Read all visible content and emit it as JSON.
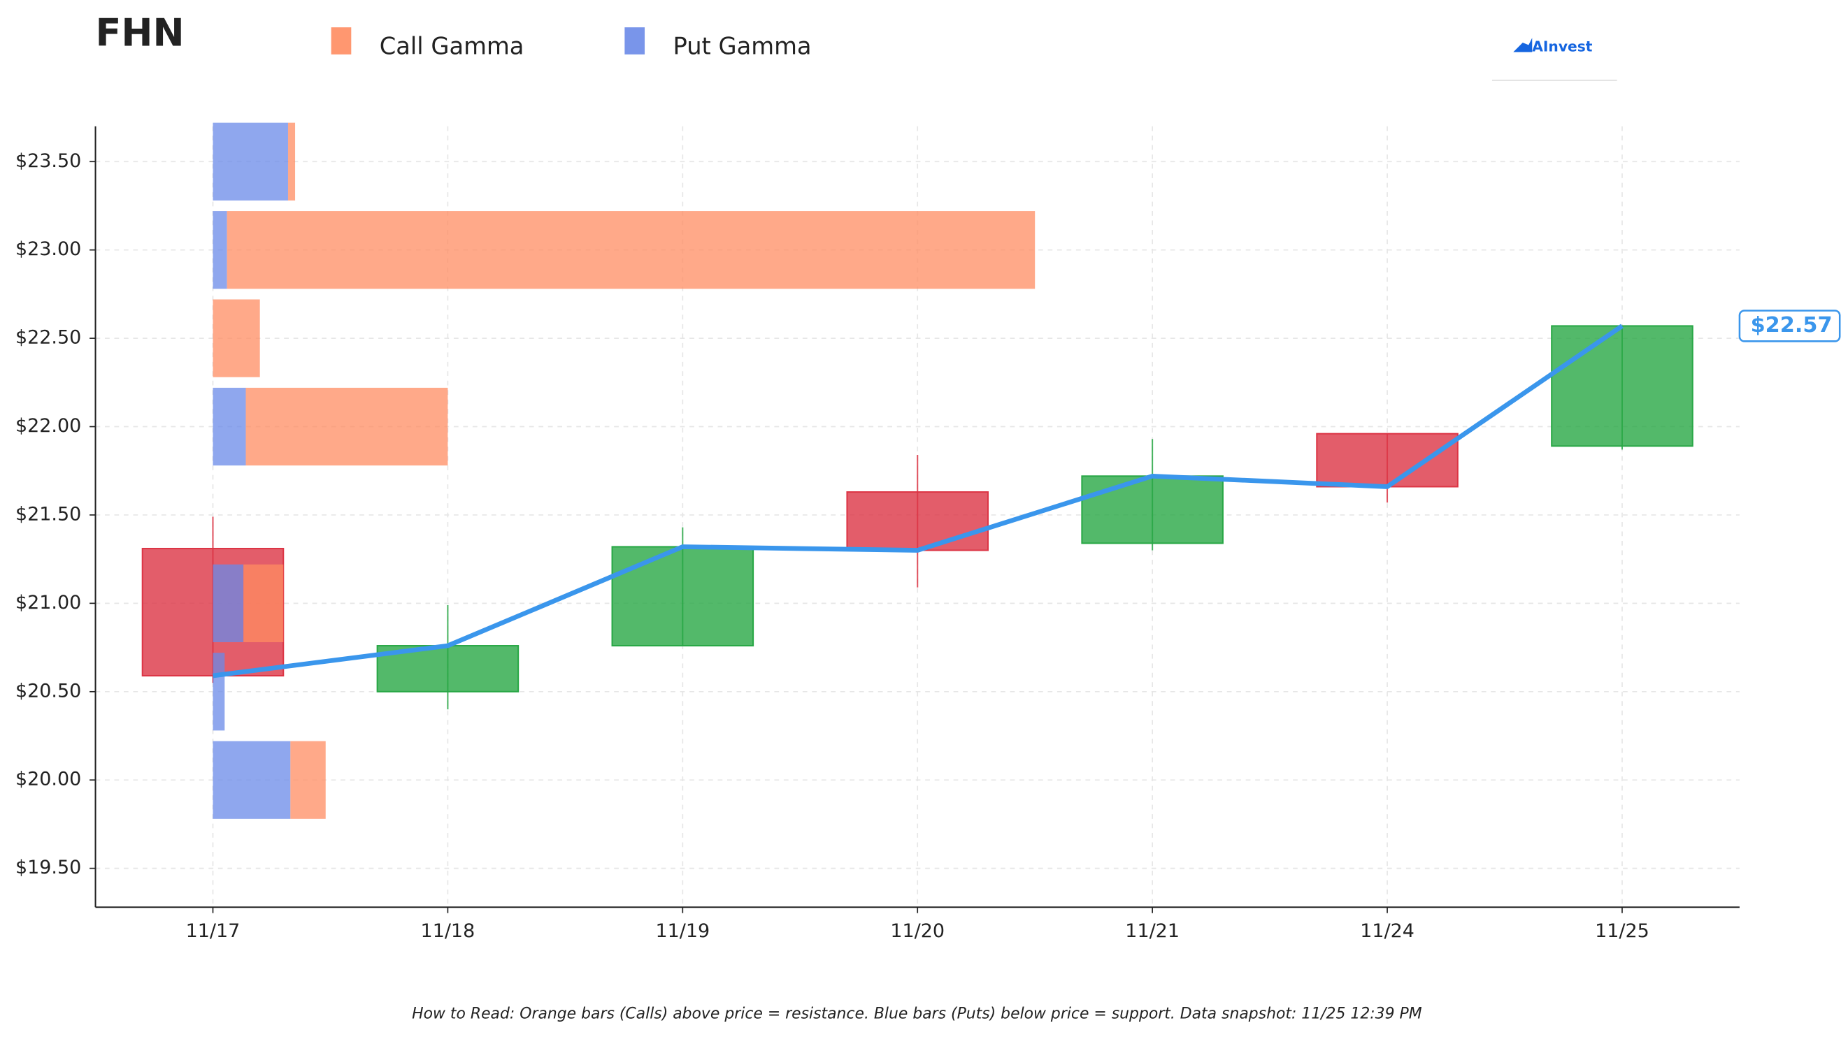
{
  "chart_data": {
    "type": "candlestick",
    "title": "FHN",
    "categories": [
      "11/17",
      "11/18",
      "11/19",
      "11/20",
      "11/21",
      "11/24",
      "11/25"
    ],
    "open": [
      21.31,
      20.5,
      20.76,
      21.63,
      21.34,
      21.96,
      21.89
    ],
    "high": [
      21.49,
      20.99,
      21.43,
      21.84,
      21.93,
      21.96,
      22.57
    ],
    "low": [
      20.55,
      20.4,
      20.76,
      21.09,
      21.3,
      21.57,
      21.87
    ],
    "close": [
      20.59,
      20.76,
      21.32,
      21.3,
      21.72,
      21.66,
      22.57
    ],
    "up_color": "#28a745",
    "down_color": "#dc3545",
    "line_color": "#3a96ec",
    "ylim": [
      19.28,
      23.7
    ],
    "yticks": [
      {
        "value": 19.5,
        "label": "$19.50"
      },
      {
        "value": 20.0,
        "label": "$20.00"
      },
      {
        "value": 20.5,
        "label": "$20.50"
      },
      {
        "value": 21.0,
        "label": "$21.00"
      },
      {
        "value": 21.5,
        "label": "$21.50"
      },
      {
        "value": 22.0,
        "label": "$22.00"
      },
      {
        "value": 22.5,
        "label": "$22.50"
      },
      {
        "value": 23.0,
        "label": "$23.00"
      },
      {
        "value": 23.5,
        "label": "$23.50"
      }
    ],
    "grid": true,
    "gamma": {
      "strikes": [
        23.5,
        23.0,
        22.5,
        22.0,
        21.0,
        20.5,
        20.0
      ],
      "series": [
        {
          "name": "Put Gamma",
          "color": "#6a8ae8",
          "values": [
            0.32,
            0.06,
            0,
            0.14,
            0.13,
            0.05,
            0.33
          ]
        },
        {
          "name": "Call Gamma",
          "color": "#ff8c61",
          "values": [
            0.03,
            3.44,
            0.2,
            0.86,
            0.17,
            0,
            0.15
          ]
        }
      ]
    },
    "last_price": {
      "value": 22.57,
      "label": "$22.57"
    },
    "logo": "AInvest",
    "footnote": "How to Read: Orange bars (Calls) above price = resistance. Blue bars (Puts) below price = support. Data snapshot: 11/25 12:39 PM"
  }
}
